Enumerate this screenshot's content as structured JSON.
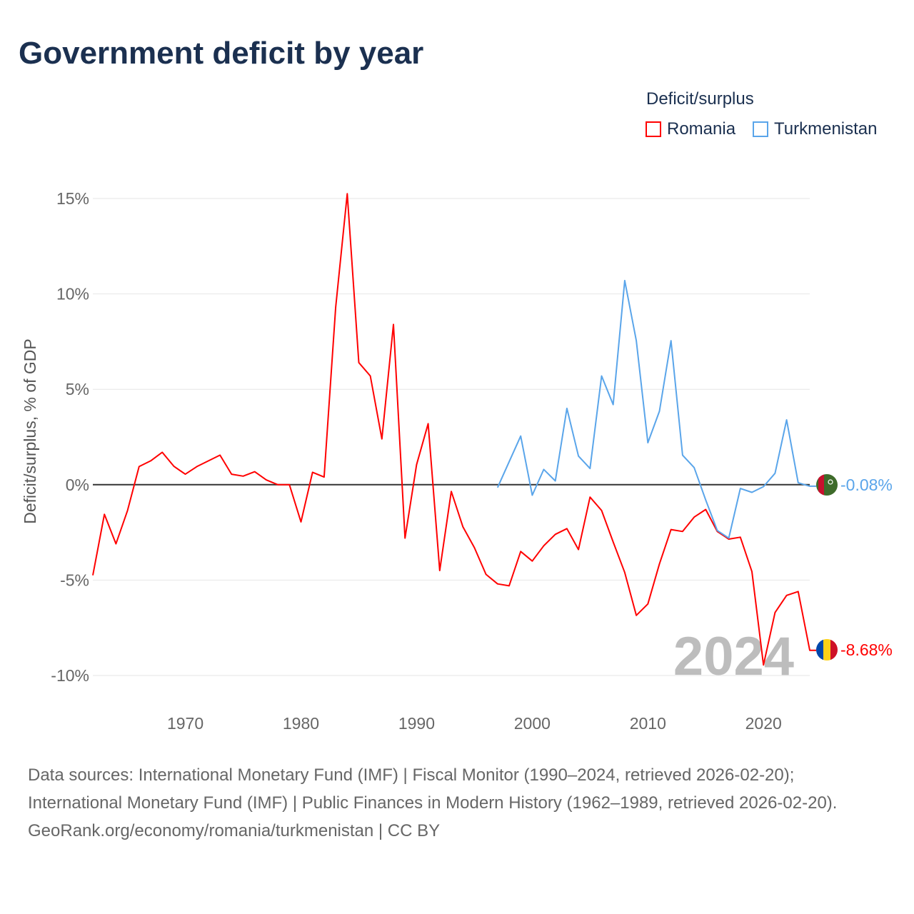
{
  "title": "Government deficit by year",
  "legend": {
    "title": "Deficit/surplus",
    "items": [
      {
        "label": "Romania",
        "color": "#ff0000"
      },
      {
        "label": "Turkmenistan",
        "color": "#5aa5ea"
      }
    ]
  },
  "year_watermark": "2024",
  "end_labels": {
    "turkmenistan": "-0.08%",
    "romania": "-8.68%"
  },
  "sources": [
    "Data sources: International Monetary Fund (IMF) | Fiscal Monitor (1990–2024, retrieved 2026-02-20); International Monetary Fund (IMF) | Public Finances in Modern History (1962–1989, retrieved 2026-02-20).",
    "GeoRank.org/economy/romania/turkmenistan | CC BY"
  ],
  "chart_data": {
    "type": "line",
    "title": "Government deficit by year",
    "xlabel": "",
    "ylabel": "Deficit/surplus, % of GDP",
    "xlim": [
      1962,
      2024
    ],
    "ylim": [
      -10,
      15
    ],
    "x_ticks": [
      1970,
      1980,
      1990,
      2000,
      2010,
      2020
    ],
    "y_ticks": [
      {
        "v": 15,
        "label": "15%"
      },
      {
        "v": 10,
        "label": "10%"
      },
      {
        "v": 5,
        "label": "5%"
      },
      {
        "v": 0,
        "label": "0%"
      },
      {
        "v": -5,
        "label": "-5%"
      },
      {
        "v": -10,
        "label": "-10%"
      }
    ],
    "grid": true,
    "legend_position": "top-right",
    "series": [
      {
        "name": "Romania",
        "color": "#ff0000",
        "start": 1962,
        "values": [
          -4.75,
          -1.55,
          -3.1,
          -1.35,
          0.95,
          1.25,
          1.7,
          0.97,
          0.55,
          0.95,
          1.25,
          1.55,
          0.55,
          0.45,
          0.68,
          0.25,
          0,
          0,
          -1.95,
          0.65,
          0.4,
          9.3,
          15.25,
          6.4,
          5.7,
          2.4,
          8.4,
          -2.8,
          1.05,
          3.2,
          -4.5,
          -0.35,
          -2.2,
          -3.3,
          -4.7,
          -5.2,
          -5.3,
          -3.5,
          -4.0,
          -3.2,
          -2.6,
          -2.3,
          -3.4,
          -0.65,
          -1.35,
          -3.0,
          -4.6,
          -6.85,
          -6.25,
          -4.15,
          -2.35,
          -2.45,
          -1.7,
          -1.3,
          -2.45,
          -2.85,
          -2.75,
          -4.55,
          -9.45,
          -6.7,
          -5.8,
          -5.6,
          -8.68
        ]
      },
      {
        "name": "Turkmenistan",
        "color": "#5aa5ea",
        "start": 1997,
        "values": [
          -0.15,
          1.2,
          2.55,
          -0.55,
          0.8,
          0.2,
          4.0,
          1.5,
          0.85,
          5.7,
          4.2,
          10.7,
          7.55,
          2.2,
          3.85,
          7.55,
          1.55,
          0.9,
          -0.8,
          -2.4,
          -2.8,
          -0.2,
          -0.4,
          -0.1,
          0.6,
          3.4,
          0.1,
          -0.08
        ]
      }
    ]
  }
}
